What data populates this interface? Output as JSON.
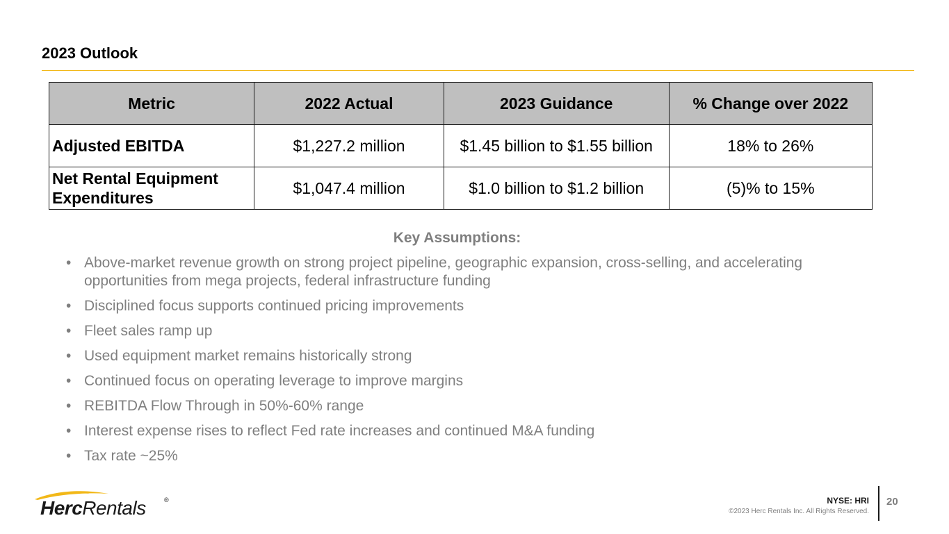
{
  "slide": {
    "title": "2023 Outlook"
  },
  "table": {
    "headers": [
      "Metric",
      "2022 Actual",
      "2023 Guidance",
      "% Change over 2022"
    ],
    "rows": [
      {
        "metric_line1": "Adjusted EBITDA",
        "metric_line2": "",
        "actual_2022": "$1,227.2 million",
        "guidance_2023": "$1.45 billion to $1.55 billion",
        "change": "18% to 26%"
      },
      {
        "metric_line1": "Net Rental Equipment",
        "metric_line2": "Expenditures",
        "actual_2022": "$1,047.4 million",
        "guidance_2023": "$1.0 billion to $1.2 billion",
        "change": "(5)% to 15%"
      }
    ]
  },
  "assumptions": {
    "heading": "Key Assumptions:",
    "bullet_glyph": "•",
    "items": [
      "Above-market revenue growth on strong project pipeline, geographic expansion, cross-selling, and accelerating opportunities from mega projects, federal infrastructure funding",
      "Disciplined focus supports continued pricing improvements",
      "Fleet sales ramp up",
      "Used equipment market remains historically strong",
      "Continued focus on operating leverage to improve margins",
      "REBITDA Flow Through in 50%-60% range",
      "Interest expense rises to reflect Fed rate increases and continued M&A funding",
      "Tax rate ~25%"
    ]
  },
  "logo": {
    "word_bold": "Herc",
    "word_regular": "Rentals",
    "registered": "®",
    "swoosh_color": "#f2b818"
  },
  "footer": {
    "ticker": "NYSE: HRI",
    "copyright": "©2023 Herc Rentals Inc.  All Rights Reserved.",
    "page_number": "20"
  },
  "colors": {
    "accent": "#f2b818",
    "header_fill": "#bfbfbf",
    "muted_text": "#7f7f7f"
  }
}
